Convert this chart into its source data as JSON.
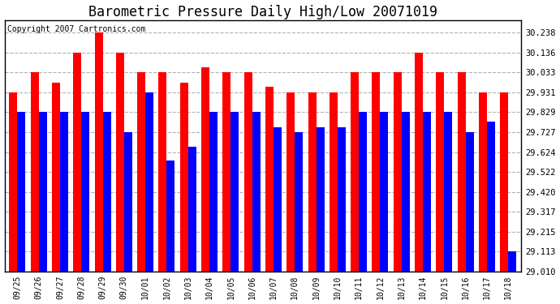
{
  "title": "Barometric Pressure Daily High/Low 20071019",
  "copyright": "Copyright 2007 Cartronics.com",
  "dates": [
    "09/25",
    "09/26",
    "09/27",
    "09/28",
    "09/29",
    "09/30",
    "10/01",
    "10/02",
    "10/03",
    "10/04",
    "10/05",
    "10/06",
    "10/07",
    "10/08",
    "10/09",
    "10/10",
    "10/11",
    "10/12",
    "10/13",
    "10/14",
    "10/15",
    "10/16",
    "10/17",
    "10/18"
  ],
  "highs": [
    29.931,
    30.033,
    29.98,
    30.136,
    30.238,
    30.136,
    30.033,
    30.033,
    29.98,
    30.06,
    30.033,
    30.033,
    29.96,
    29.931,
    29.931,
    29.931,
    30.033,
    30.033,
    30.033,
    30.136,
    30.033,
    30.033,
    29.931,
    29.931
  ],
  "lows": [
    29.829,
    29.829,
    29.829,
    29.829,
    29.829,
    29.727,
    29.931,
    29.58,
    29.65,
    29.829,
    29.829,
    29.829,
    29.75,
    29.727,
    29.75,
    29.75,
    29.829,
    29.829,
    29.829,
    29.829,
    29.829,
    29.727,
    29.78,
    29.113
  ],
  "high_color": "#FF0000",
  "low_color": "#0000FF",
  "background_color": "#FFFFFF",
  "plot_bg_color": "#FFFFFF",
  "grid_color": "#AAAAAA",
  "yticks": [
    29.01,
    29.113,
    29.215,
    29.317,
    29.42,
    29.522,
    29.624,
    29.727,
    29.829,
    29.931,
    30.033,
    30.136,
    30.238
  ],
  "ymin": 29.01,
  "ymax": 30.3,
  "title_fontsize": 12,
  "copyright_fontsize": 7
}
